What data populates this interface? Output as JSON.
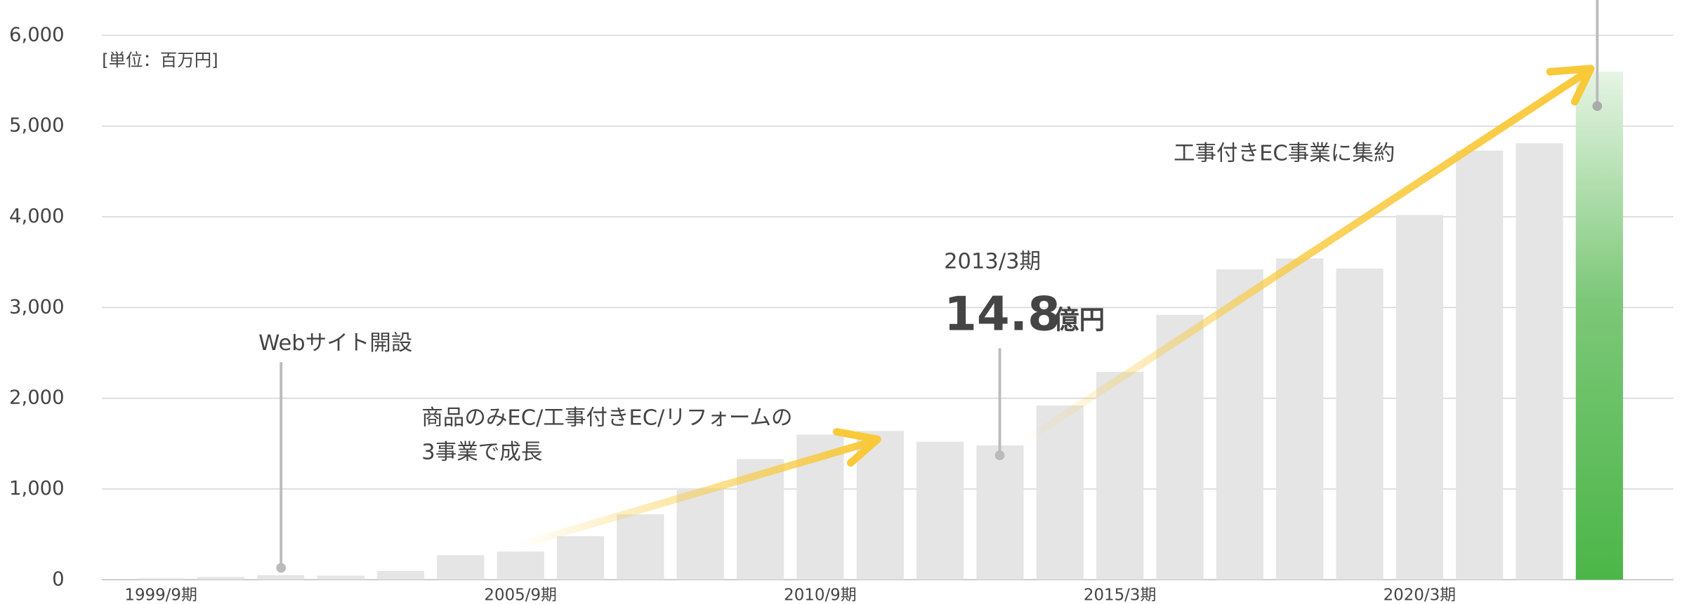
{
  "chart_data": {
    "type": "bar",
    "unit_note": "[単位：百万円]",
    "categories": [
      "1999/9期",
      null,
      null,
      null,
      null,
      null,
      "2005/9期",
      null,
      null,
      null,
      null,
      "2010/9期",
      null,
      null,
      null,
      null,
      "2015/3期",
      null,
      null,
      null,
      null,
      "2020/3期",
      null,
      null,
      null
    ],
    "values": [
      15,
      30,
      50,
      45,
      95,
      270,
      310,
      480,
      720,
      1010,
      1330,
      1600,
      1640,
      1520,
      1480,
      1920,
      2290,
      2920,
      3420,
      3540,
      3430,
      4020,
      4730,
      4810,
      5600
    ],
    "color": "#e5e5e5",
    "highlight_color": "#4cb648",
    "ylim": [
      0,
      6000
    ],
    "yticks": [
      0,
      {
        "value": 1000,
        "label": "1,000"
      },
      {
        "value": 2000,
        "label": "2,000"
      },
      {
        "value": 3000,
        "label": "3,000"
      },
      {
        "value": 4000,
        "label": "4,000"
      },
      {
        "value": 5000,
        "label": "5,000"
      },
      {
        "value": 6000,
        "label": "6,000"
      }
    ],
    "grid": true,
    "annotations": {
      "web_open": "Webサイト開設",
      "growth_line1": "商品のみEC/工事付きEC/リフォームの",
      "growth_line2": "3事業で成長",
      "highlight_period": "2013/3期",
      "highlight_value": "14.8",
      "highlight_unit": "億円",
      "focus": "工事付きEC事業に集約"
    }
  }
}
